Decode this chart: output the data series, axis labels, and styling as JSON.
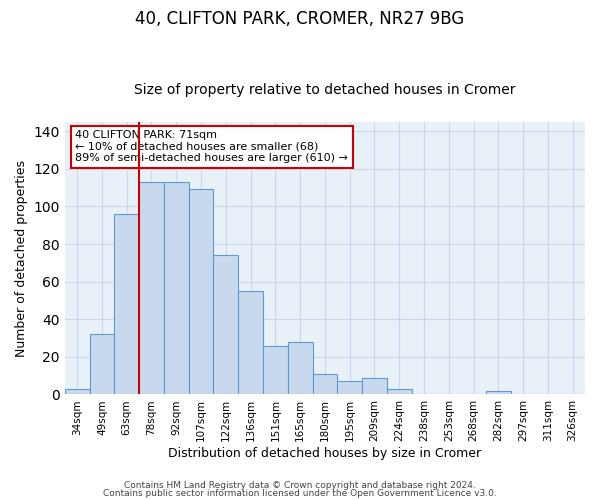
{
  "title": "40, CLIFTON PARK, CROMER, NR27 9BG",
  "subtitle": "Size of property relative to detached houses in Cromer",
  "xlabel": "Distribution of detached houses by size in Cromer",
  "ylabel": "Number of detached properties",
  "bar_labels": [
    "34sqm",
    "49sqm",
    "63sqm",
    "78sqm",
    "92sqm",
    "107sqm",
    "122sqm",
    "136sqm",
    "151sqm",
    "165sqm",
    "180sqm",
    "195sqm",
    "209sqm",
    "224sqm",
    "238sqm",
    "253sqm",
    "268sqm",
    "282sqm",
    "297sqm",
    "311sqm",
    "326sqm"
  ],
  "bar_values": [
    3,
    32,
    96,
    113,
    113,
    109,
    74,
    55,
    26,
    28,
    11,
    7,
    9,
    3,
    0,
    0,
    0,
    2,
    0,
    0,
    0
  ],
  "bar_color": "#c9d9ed",
  "bar_edgecolor": "#5b9bd5",
  "vline_color": "#cc0000",
  "annotation_text": "40 CLIFTON PARK: 71sqm\n← 10% of detached houses are smaller (68)\n89% of semi-detached houses are larger (610) →",
  "annotation_box_edgecolor": "#cc0000",
  "annotation_box_facecolor": "#ffffff",
  "ylim": [
    0,
    145
  ],
  "footer1": "Contains HM Land Registry data © Crown copyright and database right 2024.",
  "footer2": "Contains public sector information licensed under the Open Government Licence v3.0.",
  "background_color": "#ffffff",
  "plot_bg_color": "#e8f0f8",
  "grid_color": "#c8d8e8",
  "title_fontsize": 12,
  "subtitle_fontsize": 10,
  "tick_fontsize": 7.5,
  "ylabel_fontsize": 9,
  "xlabel_fontsize": 9,
  "annotation_fontsize": 8,
  "footer_fontsize": 6.5,
  "vline_bar_index": 3
}
